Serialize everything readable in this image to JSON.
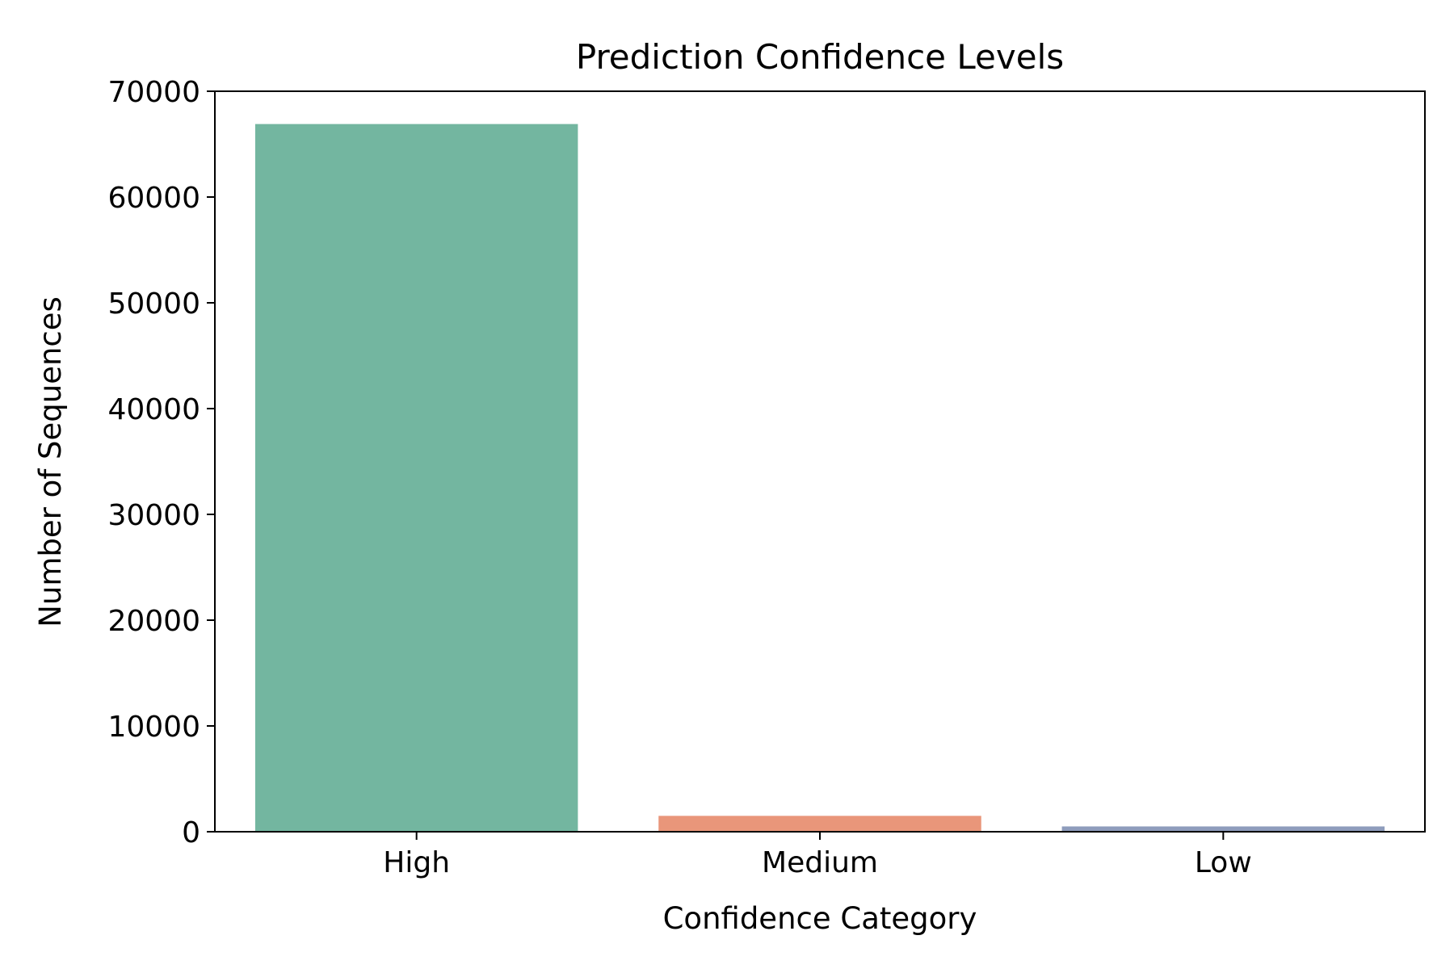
{
  "chart_data": {
    "type": "bar",
    "title": "Prediction Confidence Levels",
    "xlabel": "Confidence Category",
    "ylabel": "Number of Sequences",
    "categories": [
      "High",
      "Medium",
      "Low"
    ],
    "values": [
      66900,
      1500,
      500
    ],
    "colors": [
      "#73b6a0",
      "#e9967a",
      "#8e9cbc"
    ],
    "ylim": [
      0,
      70000
    ],
    "yticks": [
      0,
      10000,
      20000,
      30000,
      40000,
      50000,
      60000,
      70000
    ],
    "grid": false,
    "legend": "none"
  }
}
